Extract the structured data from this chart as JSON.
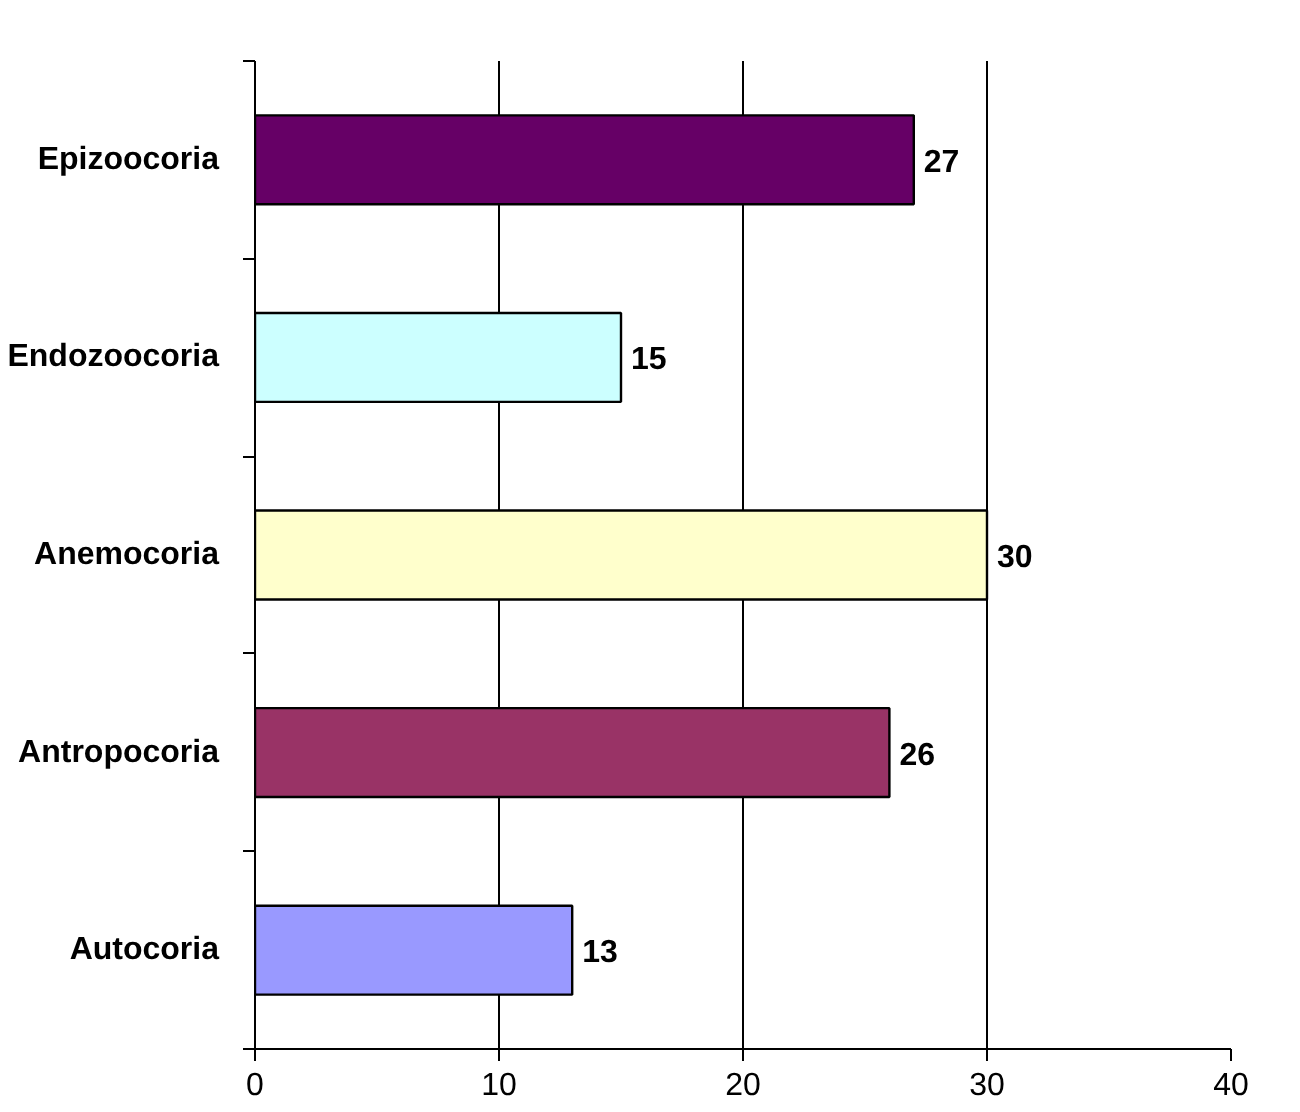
{
  "chart_data": {
    "type": "bar",
    "orientation": "horizontal",
    "categories": [
      "Epizoocoria",
      "Endozoocoria",
      "Anemocoria",
      "Antropocoria",
      "Autocoria"
    ],
    "values": [
      27,
      15,
      30,
      26,
      13
    ],
    "colors": [
      "#660066",
      "#ccffff",
      "#ffffcc",
      "#993366",
      "#9999ff"
    ],
    "xlim": [
      0,
      40
    ],
    "xticks": [
      0,
      10,
      20,
      30,
      40
    ],
    "grid": "x",
    "data_labels": true
  }
}
